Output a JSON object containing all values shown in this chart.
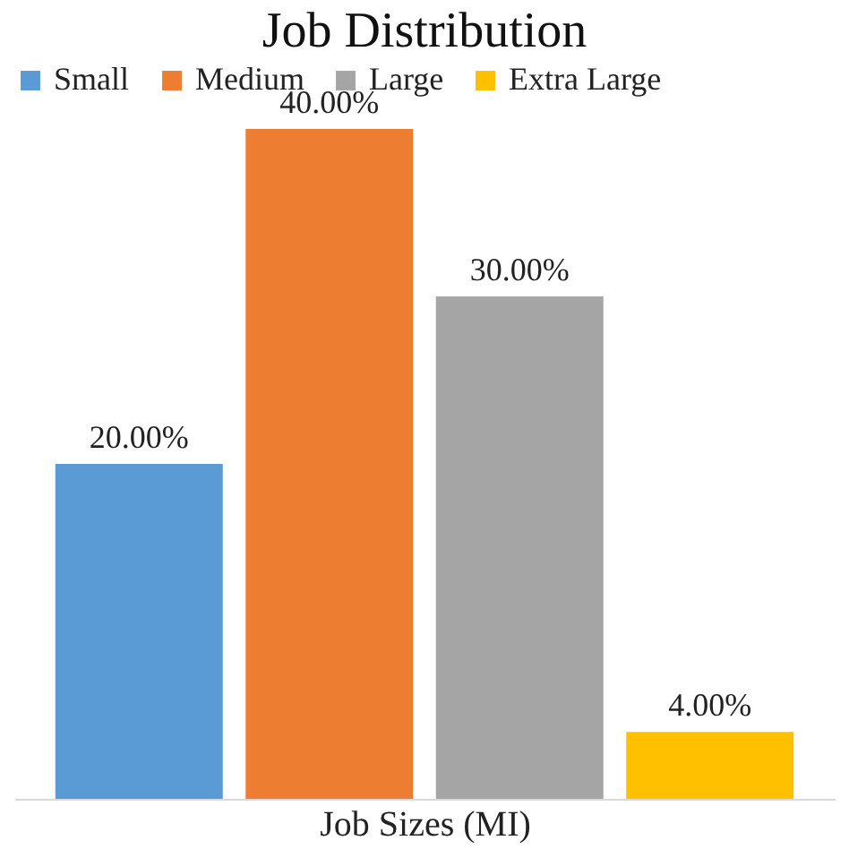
{
  "chart_data": {
    "type": "bar",
    "title": "Job Distribution",
    "xlabel": "Job Sizes (MI)",
    "categories": [
      null
    ],
    "legend": "top",
    "grid": false,
    "series": [
      {
        "name": "Small",
        "color": "#5b9bd5",
        "values": [
          20
        ],
        "value_labels": [
          "20.00%"
        ]
      },
      {
        "name": "Medium",
        "color": "#ed7d31",
        "values": [
          40
        ],
        "value_labels": [
          "40.00%"
        ]
      },
      {
        "name": "Large",
        "color": "#a5a5a5",
        "values": [
          30
        ],
        "value_labels": [
          "30.00%"
        ]
      },
      {
        "name": "Extra Large",
        "color": "#ffc000",
        "values": [
          4
        ],
        "value_labels": [
          "4.00%"
        ]
      }
    ]
  }
}
